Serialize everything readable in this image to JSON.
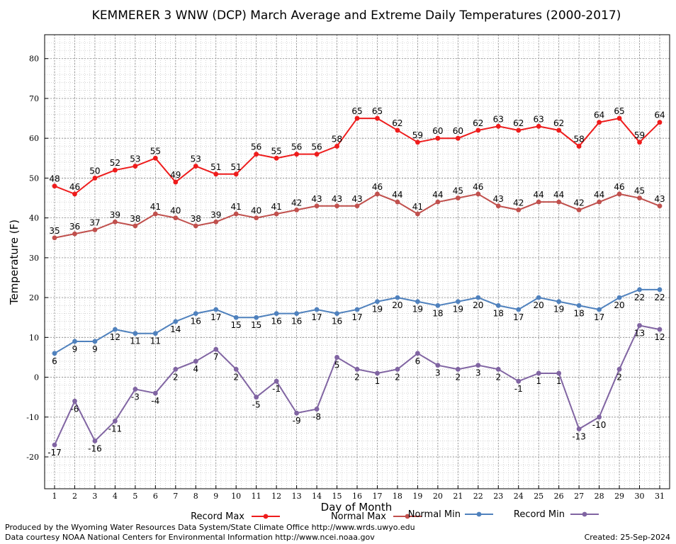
{
  "chart_data": {
    "type": "line",
    "title": "KEMMERER 3 WNW (DCP) March Average and Extreme Daily Temperatures (2000-2017)",
    "xlabel": "Day of Month",
    "ylabel": "Temperature (F)",
    "ylim": [
      -28,
      86
    ],
    "yticks": [
      -20,
      -10,
      0,
      10,
      20,
      30,
      40,
      50,
      60,
      70,
      80
    ],
    "xlim": [
      1,
      31
    ],
    "x": [
      1,
      2,
      3,
      4,
      5,
      6,
      7,
      8,
      9,
      10,
      11,
      12,
      13,
      14,
      15,
      16,
      17,
      18,
      19,
      20,
      21,
      22,
      23,
      24,
      25,
      26,
      27,
      28,
      29,
      30,
      31
    ],
    "grid": true,
    "legend_position": "bottom",
    "series": [
      {
        "name": "Record Max",
        "color": "#ee1c1c",
        "label_position": "above",
        "values": [
          48,
          46,
          50,
          52,
          53,
          55,
          49,
          53,
          51,
          51,
          56,
          55,
          56,
          56,
          58,
          65,
          65,
          62,
          59,
          60,
          60,
          62,
          63,
          62,
          63,
          62,
          58,
          64,
          65,
          59,
          64
        ]
      },
      {
        "name": "Normal Max",
        "color": "#c0504d",
        "label_position": "above",
        "values": [
          35,
          36,
          37,
          39,
          38,
          41,
          40,
          38,
          39,
          41,
          40,
          41,
          42,
          43,
          43,
          43,
          46,
          44,
          41,
          44,
          45,
          46,
          43,
          42,
          44,
          44,
          42,
          44,
          46,
          45,
          43
        ]
      },
      {
        "name": "Normal Min",
        "color": "#4f81bd",
        "label_position": "below",
        "values": [
          6,
          9,
          9,
          12,
          11,
          11,
          14,
          16,
          17,
          15,
          15,
          16,
          16,
          17,
          16,
          17,
          19,
          20,
          19,
          18,
          19,
          20,
          18,
          17,
          20,
          19,
          18,
          17,
          20,
          22,
          22
        ]
      },
      {
        "name": "Record Min",
        "color": "#8064a2",
        "label_position": "below",
        "values": [
          -17,
          -6,
          -16,
          -11,
          -3,
          -4,
          2,
          4,
          7,
          2,
          -5,
          -1,
          -9,
          -8,
          5,
          2,
          1,
          2,
          6,
          3,
          2,
          3,
          2,
          -1,
          1,
          1,
          -13,
          -10,
          2,
          13,
          12
        ]
      }
    ]
  },
  "footer": {
    "produced_by": "Produced by the Wyoming Water Resources Data System/State Climate Office http://www.wrds.uwyo.edu",
    "courtesy": "Data courtesy NOAA National Centers for Environmental Information http://www.ncei.noaa.gov",
    "created": "Created:  25-Sep-2024"
  }
}
